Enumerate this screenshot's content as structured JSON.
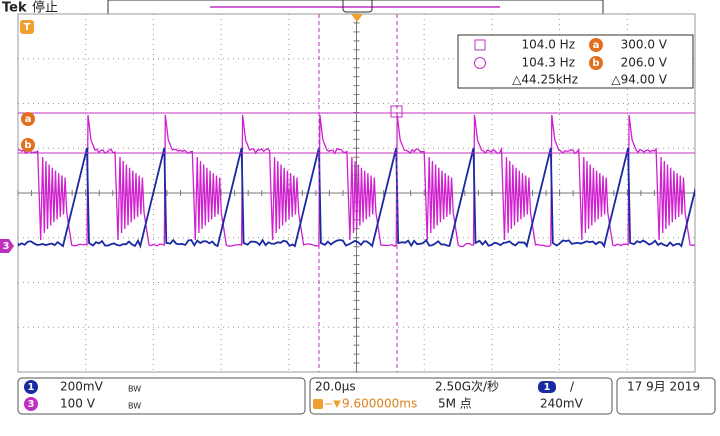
{
  "header": {
    "brand": "Tek",
    "status": "停止"
  },
  "cursor_readout": {
    "row1": {
      "freq": "104.0 Hz",
      "badge": "a",
      "volt": "300.0 V"
    },
    "row2": {
      "freq": "104.3 Hz",
      "badge": "b",
      "volt": "206.0 V"
    },
    "row3": {
      "delta_freq": "△44.25kHz",
      "delta_volt": "△94.00 V"
    }
  },
  "markers": {
    "trigger": "T",
    "cursor_a": "a",
    "cursor_b": "b",
    "ch3": "3"
  },
  "channels": [
    {
      "id": "1",
      "scale": "200mV",
      "bw": "BW"
    },
    {
      "id": "3",
      "scale": "100 V",
      "bw": "BW"
    }
  ],
  "acquisition": {
    "timebase": "20.0μs",
    "sample_rate": "2.50G次/秒",
    "trigger_source": "1",
    "trigger_slope": "/",
    "trigger_position": "9.600000ms",
    "record_length": "5M 点",
    "trigger_level": "240mV"
  },
  "date": "17 9月 2019"
}
